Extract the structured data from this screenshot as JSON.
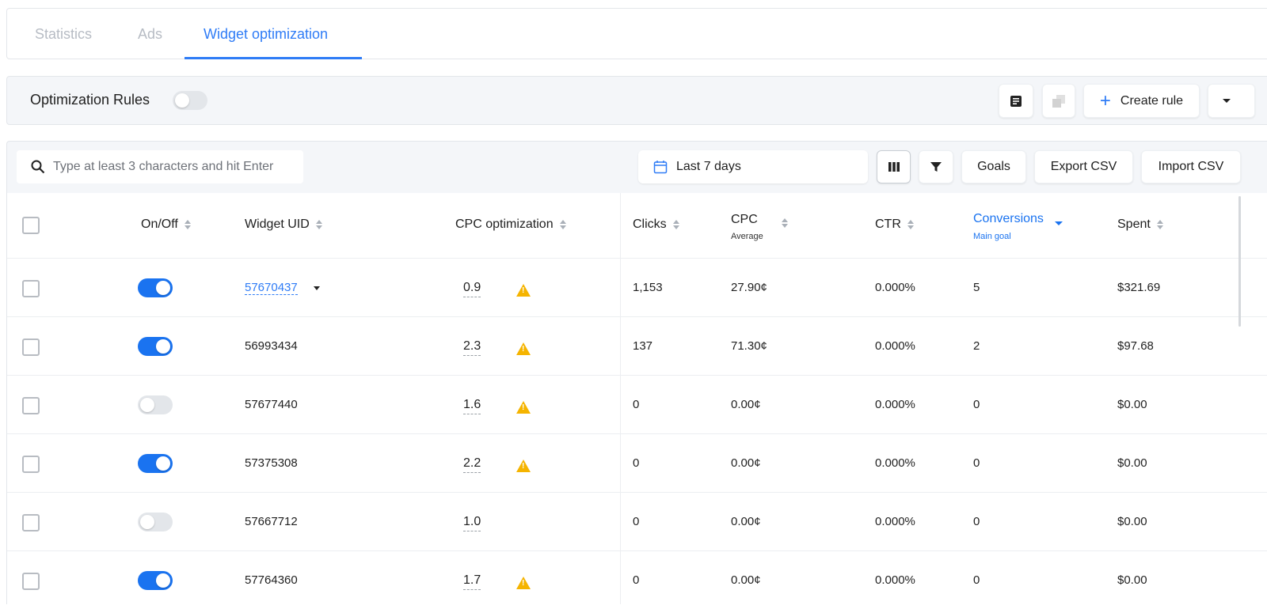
{
  "tabs": [
    {
      "label": "Statistics",
      "active": false
    },
    {
      "label": "Ads",
      "active": false
    },
    {
      "label": "Widget optimization",
      "active": true
    }
  ],
  "rules": {
    "label": "Optimization Rules",
    "enabled": false,
    "create_label": "Create rule"
  },
  "toolbar": {
    "search_placeholder": "Type at least 3 characters and hit Enter",
    "date_range": "Last 7 days",
    "goals": "Goals",
    "export": "Export CSV",
    "import": "Import CSV"
  },
  "colors": {
    "accent": "#1a73f0",
    "warning": "#f5b400"
  },
  "columns": {
    "onoff": "On/Off",
    "uid": "Widget UID",
    "cpc_opt": "CPC optimization",
    "clicks": "Clicks",
    "cpc": "CPC",
    "cpc_sub": "Average",
    "ctr": "CTR",
    "conv": "Conversions",
    "conv_sub": "Main goal",
    "spent": "Spent"
  },
  "rows": [
    {
      "on": true,
      "uid": "57670437",
      "uid_link": true,
      "cpc_opt": "0.9",
      "warning": true,
      "clicks": "1,153",
      "cpc": "27.90¢",
      "ctr": "0.000%",
      "conv": "5",
      "spent": "$321.69"
    },
    {
      "on": true,
      "uid": "56993434",
      "uid_link": false,
      "cpc_opt": "2.3",
      "warning": true,
      "clicks": "137",
      "cpc": "71.30¢",
      "ctr": "0.000%",
      "conv": "2",
      "spent": "$97.68"
    },
    {
      "on": false,
      "uid": "57677440",
      "uid_link": false,
      "cpc_opt": "1.6",
      "warning": true,
      "clicks": "0",
      "cpc": "0.00¢",
      "ctr": "0.000%",
      "conv": "0",
      "spent": "$0.00"
    },
    {
      "on": true,
      "uid": "57375308",
      "uid_link": false,
      "cpc_opt": "2.2",
      "warning": true,
      "clicks": "0",
      "cpc": "0.00¢",
      "ctr": "0.000%",
      "conv": "0",
      "spent": "$0.00"
    },
    {
      "on": false,
      "uid": "57667712",
      "uid_link": false,
      "cpc_opt": "1.0",
      "warning": false,
      "clicks": "0",
      "cpc": "0.00¢",
      "ctr": "0.000%",
      "conv": "0",
      "spent": "$0.00"
    },
    {
      "on": true,
      "uid": "57764360",
      "uid_link": false,
      "cpc_opt": "1.7",
      "warning": true,
      "clicks": "0",
      "cpc": "0.00¢",
      "ctr": "0.000%",
      "conv": "0",
      "spent": "$0.00"
    }
  ]
}
